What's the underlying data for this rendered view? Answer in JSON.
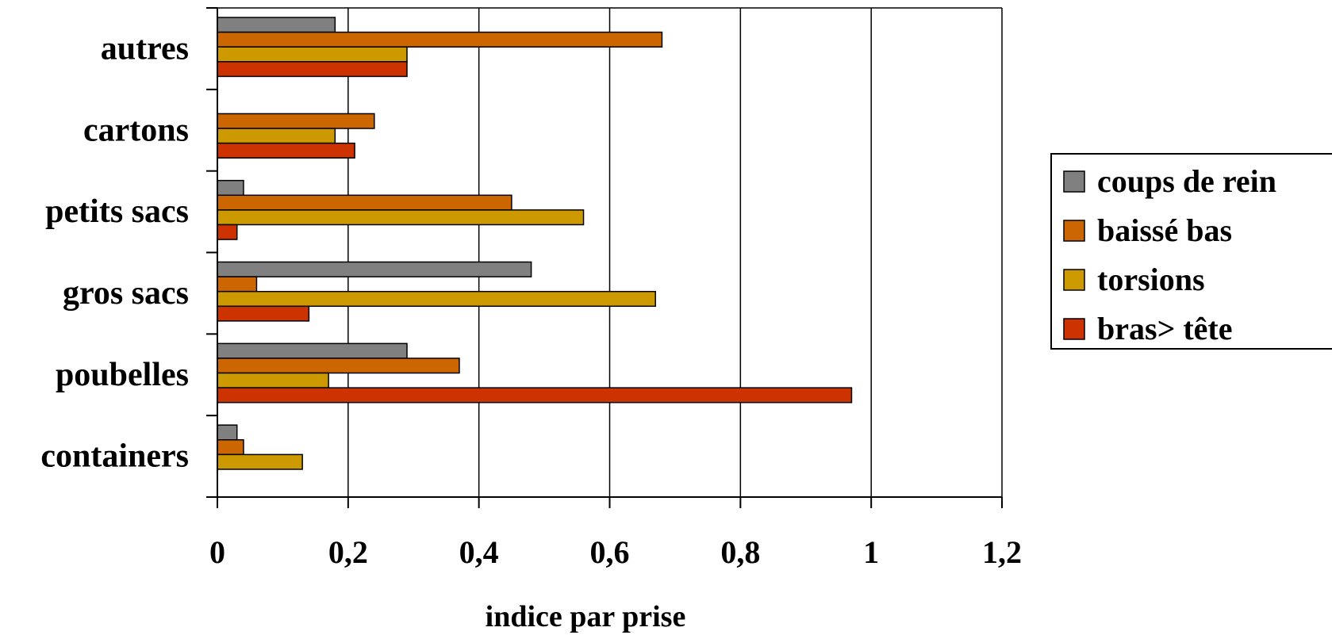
{
  "chart_data": {
    "type": "bar",
    "orientation": "horizontal",
    "title": "",
    "xlabel": "indice par prise",
    "ylabel": "",
    "xlim": [
      0,
      1.2
    ],
    "xticks": [
      0,
      0.2,
      0.4,
      0.6,
      0.8,
      1,
      1.2
    ],
    "xtick_labels": [
      "0",
      "0,2",
      "0,4",
      "0,6",
      "0,8",
      "1",
      "1,2"
    ],
    "grid": "vertical",
    "legend_position": "right",
    "categories": [
      "autres",
      "cartons",
      "petits sacs",
      "gros sacs",
      "poubelles",
      "containers"
    ],
    "series": [
      {
        "name": "coups de rein",
        "color": "#808080",
        "values": [
          0.18,
          0,
          0.04,
          0.48,
          0.29,
          0.03
        ]
      },
      {
        "name": "baissé bas",
        "color": "#CC6600",
        "values": [
          0.68,
          0.24,
          0.45,
          0.06,
          0.37,
          0.04
        ]
      },
      {
        "name": "torsions",
        "color": "#CC9900",
        "values": [
          0.29,
          0.18,
          0.56,
          0.67,
          0.17,
          0.13
        ]
      },
      {
        "name": "bras> tête",
        "color": "#CC3300",
        "values": [
          0.29,
          0.21,
          0.03,
          0.14,
          0.97,
          0
        ]
      }
    ]
  }
}
